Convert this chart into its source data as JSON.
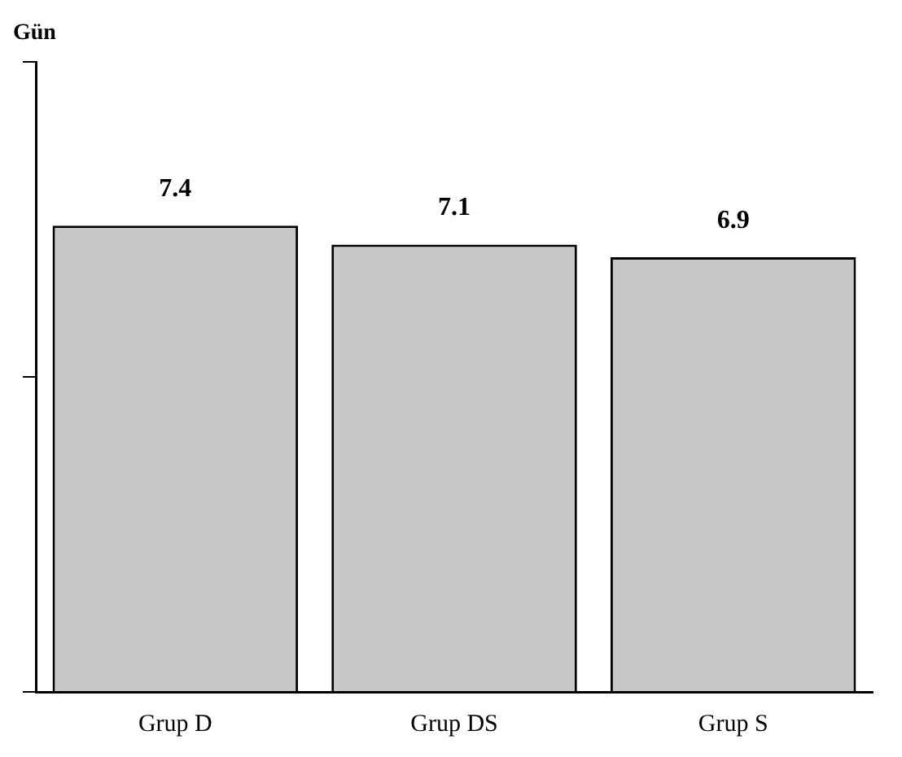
{
  "chart_data": {
    "type": "bar",
    "ylabel": "Gün",
    "categories": [
      "Grup D",
      "Grup DS",
      "Grup S"
    ],
    "values": [
      7.4,
      7.1,
      6.9
    ],
    "color": "#c8c8c8",
    "ylim": [
      0,
      10
    ],
    "data_labels": true,
    "grid": false,
    "legend": false
  }
}
